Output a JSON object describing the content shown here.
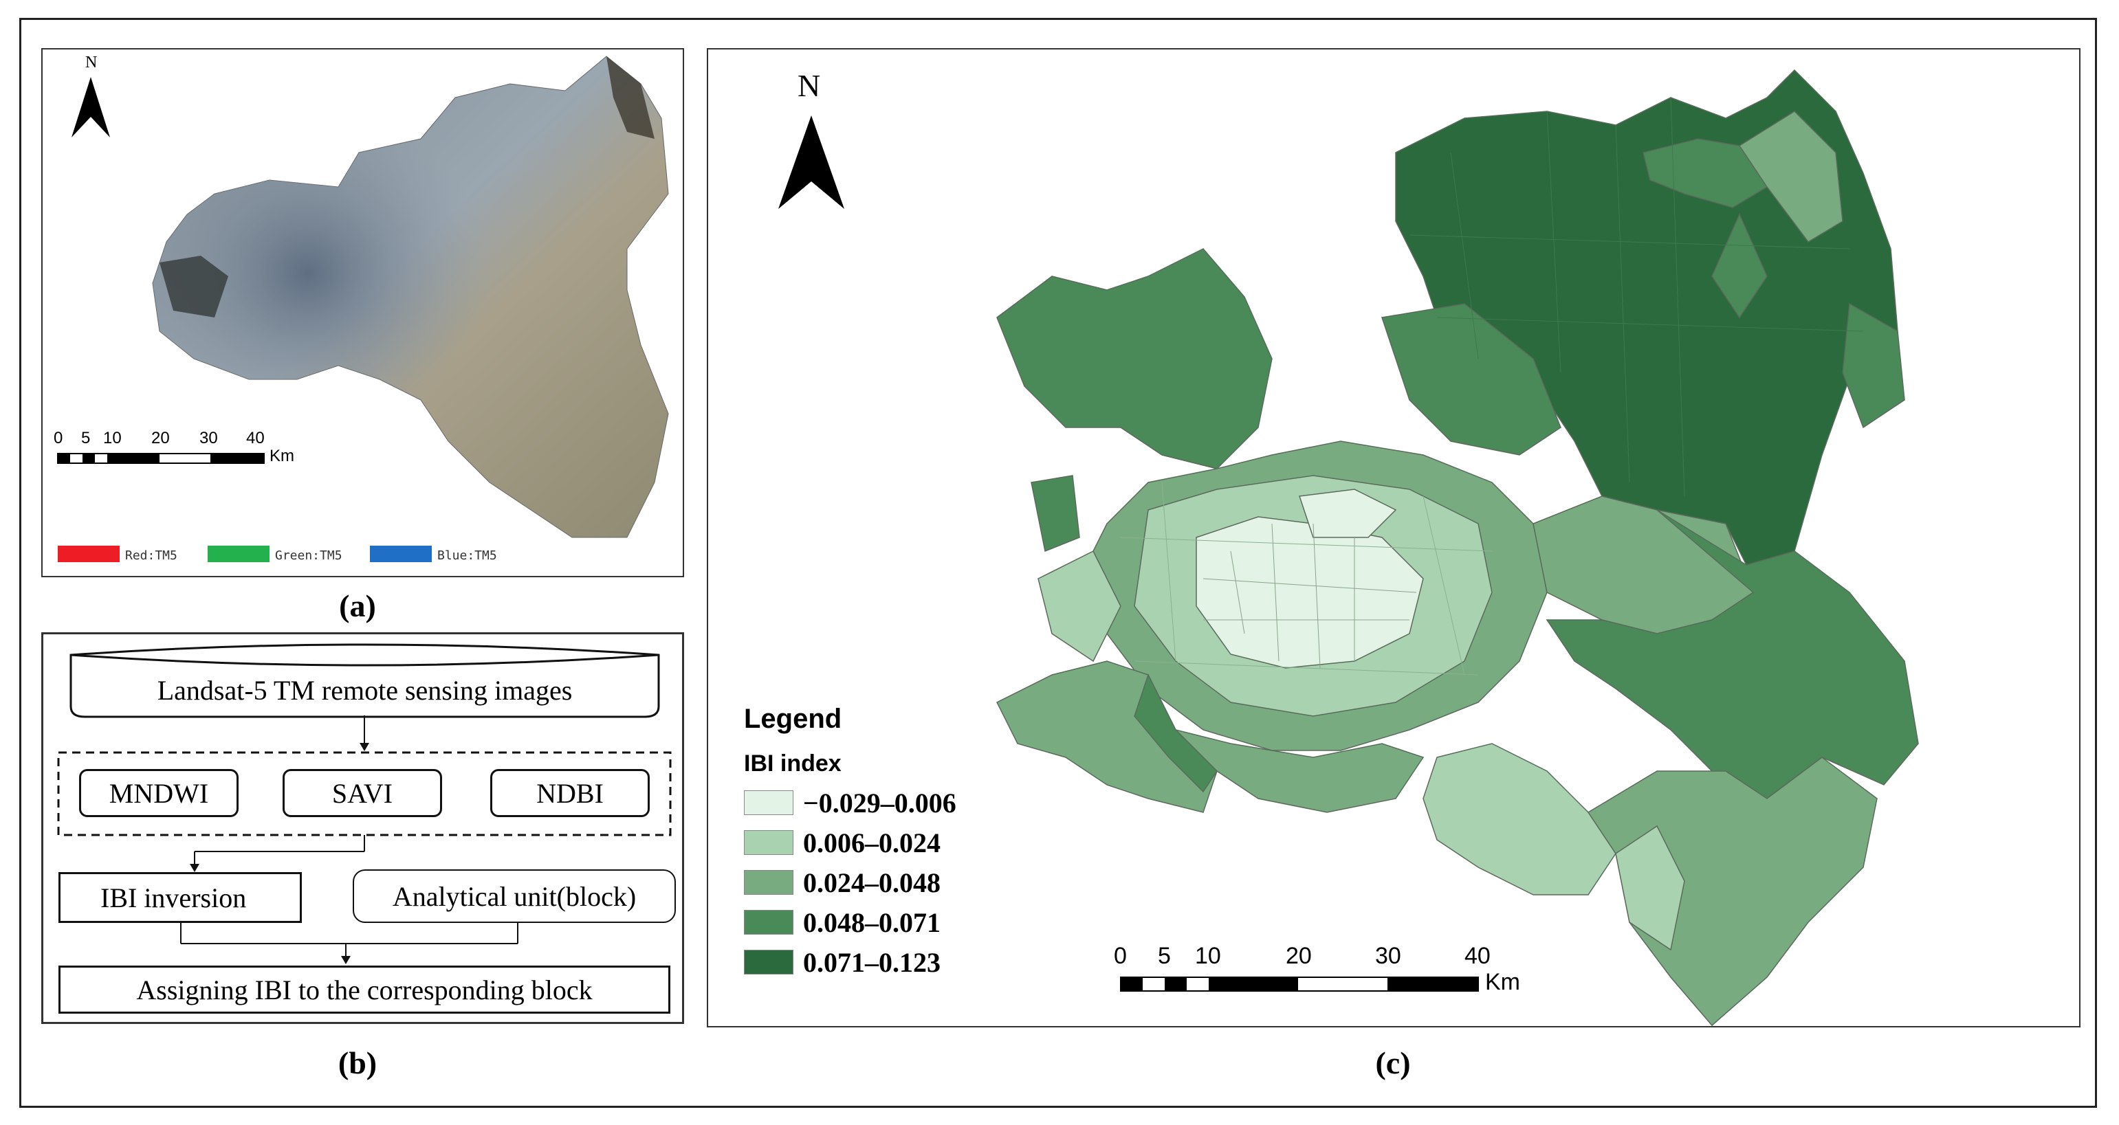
{
  "panel_a": {
    "north_label": "N",
    "scale_ticks": [
      "0",
      "5",
      "10",
      "20",
      "30",
      "40"
    ],
    "scale_unit": "Km",
    "bands": [
      {
        "label": "Red:TM5",
        "color": "#ee1c24"
      },
      {
        "label": "Green:TM5",
        "color": "#22b14c"
      },
      {
        "label": "Blue:TM5",
        "color": "#1f6fc6"
      }
    ],
    "caption": "(a)"
  },
  "panel_b": {
    "top": "Landsat-5 TM remote sensing images",
    "indices": [
      "MNDWI",
      "SAVI",
      "NDBI"
    ],
    "inversion": "IBI inversion",
    "unit": "Analytical unit(block)",
    "result": "Assigning IBI to the corresponding block",
    "caption": "(b)"
  },
  "panel_c": {
    "north_label": "N",
    "legend_title": "Legend",
    "legend_subtitle": "IBI index",
    "classes": [
      {
        "label": "−0.029–0.006",
        "color": "#e3f3e6"
      },
      {
        "label": "0.006–0.024",
        "color": "#a9d2b0"
      },
      {
        "label": "0.024–0.048",
        "color": "#78ac80"
      },
      {
        "label": "0.048–0.071",
        "color": "#4a8a58"
      },
      {
        "label": "0.071–0.123",
        "color": "#2a6a3c"
      }
    ],
    "scale_ticks": [
      "0",
      "5",
      "10",
      "20",
      "30",
      "40"
    ],
    "scale_unit": "Km",
    "caption": "(c)"
  }
}
